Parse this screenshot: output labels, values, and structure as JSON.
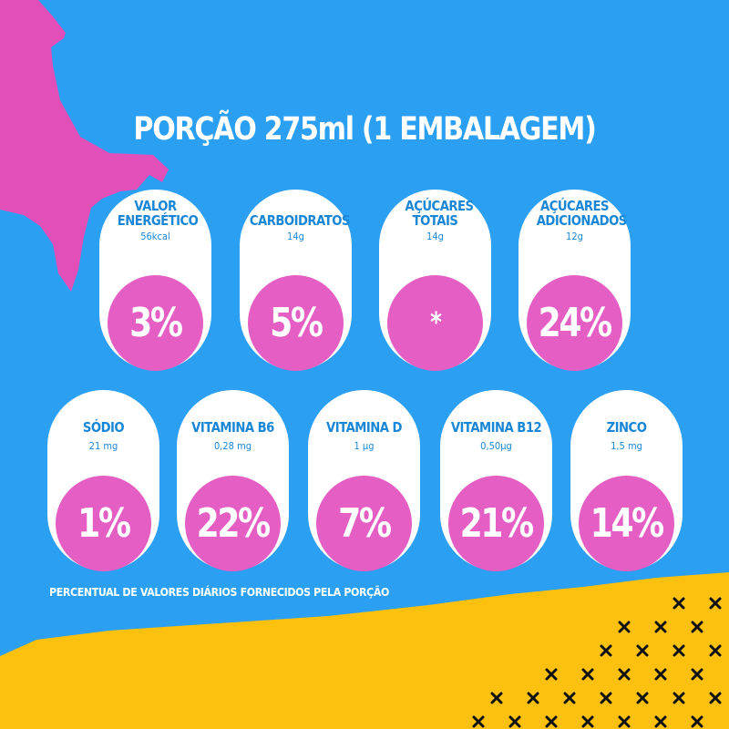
{
  "title": "PORÇÃO 275ml (1 EMBALAGEM)",
  "colors": {
    "background": "#2b9ff2",
    "card": "#ffffff",
    "circle": "#e45ec4",
    "label": "#1a86d6",
    "accent_yellow": "#fcc00e",
    "accent_pink": "#e24fb9"
  },
  "nutrients_row1": [
    {
      "name": "VALOR ENERGÉTICO",
      "amount": "56kcal",
      "percent": "3%"
    },
    {
      "name": "CARBOIDRATOS",
      "amount": "14g",
      "percent": "5%"
    },
    {
      "name": "AÇÚCARES TOTAIS",
      "amount": "14g",
      "percent": "*"
    },
    {
      "name": "AÇÚCARES ADICIONADOS",
      "amount": "12g",
      "percent": "24%"
    }
  ],
  "nutrients_row2": [
    {
      "name": "SÓDIO",
      "amount": "21 mg",
      "percent": "1%"
    },
    {
      "name": "VITAMINA B6",
      "amount": "0,28 mg",
      "percent": "22%"
    },
    {
      "name": "VITAMINA D",
      "amount": "1 µg",
      "percent": "7%"
    },
    {
      "name": "VITAMINA B12",
      "amount": "0,50µg",
      "percent": "21%"
    },
    {
      "name": "ZINCO",
      "amount": "1,5 mg",
      "percent": "14%"
    }
  ],
  "footnote": "PERCENTUAL DE VALORES DIÁRIOS FORNECIDOS PELA PORÇÃO"
}
